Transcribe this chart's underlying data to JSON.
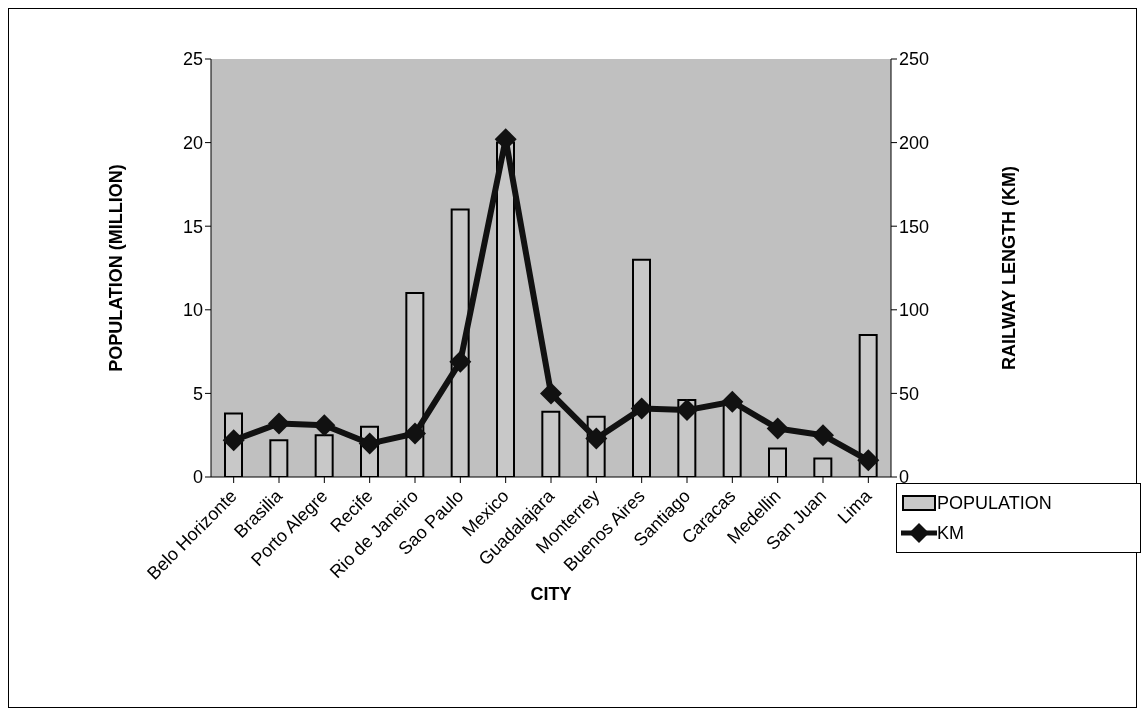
{
  "chart_data": {
    "type": "bar",
    "xlabel": "CITY",
    "ylabel": "POPULATION (MILLION)",
    "y2label": "RAILWAY LENGTH (KM)",
    "categories": [
      "Belo Horizonte",
      "Brasilia",
      "Porto Alegre",
      "Recife",
      "Rio de Janeiro",
      "Sao Paulo",
      "Mexico",
      "Guadalajara",
      "Monterrey",
      "Buenos Aires",
      "Santiago",
      "Caracas",
      "Medellin",
      "San Juan",
      "Lima"
    ],
    "series": [
      {
        "name": "POPULATION",
        "color": "#c8c8c8",
        "values": [
          3.8,
          2.2,
          2.5,
          3.0,
          11.0,
          16.0,
          20.0,
          3.9,
          3.6,
          13.0,
          4.6,
          4.5,
          1.7,
          1.1,
          8.5
        ]
      },
      {
        "name": "KM",
        "type": "line",
        "axis": "y2",
        "color": "#111111",
        "values": [
          22,
          32,
          31,
          20,
          26,
          69,
          202,
          50,
          23,
          41,
          40,
          45,
          29,
          25,
          10
        ]
      }
    ],
    "ylim": [
      0,
      25
    ],
    "yticks": [
      0,
      5,
      10,
      15,
      20,
      25
    ],
    "y2lim": [
      0,
      250
    ],
    "y2ticks": [
      0,
      50,
      100,
      150,
      200,
      250
    ],
    "grid": false,
    "legend": "bottom right",
    "marker": "diamond",
    "line_style": "solid"
  }
}
